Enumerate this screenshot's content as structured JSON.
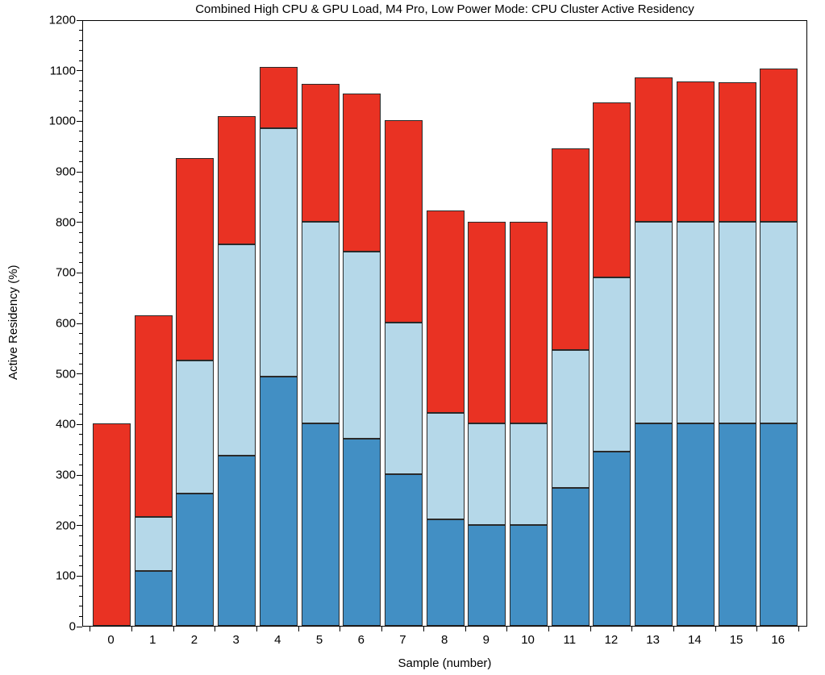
{
  "chart_data": {
    "type": "bar",
    "stacked": true,
    "title": "Combined High CPU & GPU Load, M4 Pro, Low Power Mode: CPU Cluster Active Residency",
    "xlabel": "Sample (number)",
    "ylabel": "Active Residency (%)",
    "ylim": [
      0,
      1200
    ],
    "ytick_step": 100,
    "yminor_step": 20,
    "grid": false,
    "legend": "none",
    "bar_edge_color": "#2a2a2a",
    "categories": [
      "0",
      "1",
      "2",
      "3",
      "4",
      "5",
      "6",
      "7",
      "8",
      "9",
      "10",
      "11",
      "12",
      "13",
      "14",
      "15",
      "16"
    ],
    "series": [
      {
        "key": "dark-blue-bottom",
        "color": "#428fc4",
        "values": [
          0,
          108,
          262,
          337,
          493,
          400,
          370,
          300,
          210,
          200,
          200,
          273,
          345,
          400,
          400,
          400,
          400
        ]
      },
      {
        "key": "light-blue-middle",
        "color": "#b5d8e9",
        "values": [
          0,
          107,
          263,
          418,
          492,
          400,
          370,
          300,
          212,
          200,
          200,
          272,
          345,
          400,
          400,
          400,
          400
        ]
      },
      {
        "key": "red-top",
        "color": "#e93223",
        "values": [
          400,
          400,
          400,
          253,
          121,
          273,
          314,
          400,
          400,
          400,
          400,
          400,
          345,
          285,
          277,
          276,
          303
        ]
      }
    ]
  },
  "axes": {
    "y_tick_labels": [
      "0",
      "100",
      "200",
      "300",
      "400",
      "500",
      "600",
      "700",
      "800",
      "900",
      "1000",
      "1100",
      "1200"
    ],
    "x_tick_labels": [
      "0",
      "1",
      "2",
      "3",
      "4",
      "5",
      "6",
      "7",
      "8",
      "9",
      "10",
      "11",
      "12",
      "13",
      "14",
      "15",
      "16"
    ]
  }
}
